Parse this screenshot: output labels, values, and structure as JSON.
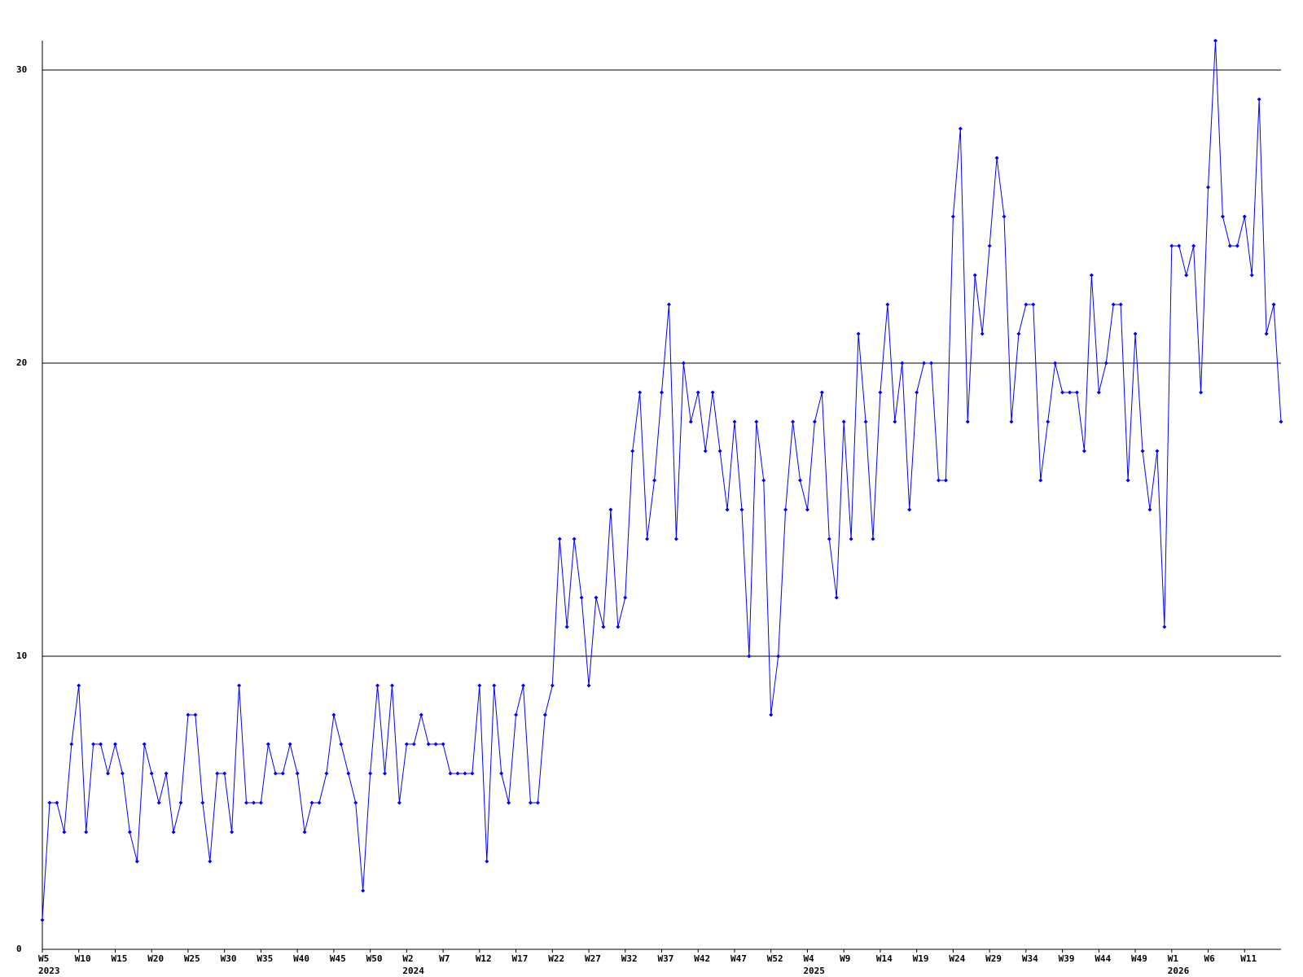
{
  "chart_data": {
    "type": "line",
    "categories": [
      "W5",
      null,
      null,
      null,
      null,
      "W10",
      null,
      null,
      null,
      null,
      "W15",
      null,
      null,
      null,
      null,
      "W20",
      null,
      null,
      null,
      null,
      "W25",
      null,
      null,
      null,
      null,
      "W30",
      null,
      null,
      null,
      null,
      "W35",
      null,
      null,
      null,
      null,
      "W40",
      null,
      null,
      null,
      null,
      "W45",
      null,
      null,
      null,
      null,
      "W50",
      null,
      null,
      null,
      null,
      "W2",
      null,
      null,
      null,
      null,
      "W7",
      null,
      null,
      null,
      null,
      "W12",
      null,
      null,
      null,
      null,
      "W17",
      null,
      null,
      null,
      null,
      "W22",
      null,
      null,
      null,
      null,
      "W27",
      null,
      null,
      null,
      null,
      "W32",
      null,
      null,
      null,
      null,
      "W37",
      null,
      null,
      null,
      null,
      "W42",
      null,
      null,
      null,
      null,
      "W47",
      null,
      null,
      null,
      null,
      "W52",
      null,
      null,
      null,
      null,
      "W4",
      null,
      null,
      null,
      null,
      "W9",
      null,
      null,
      null,
      null,
      "W14",
      null,
      null,
      null,
      null,
      "W19",
      null,
      null,
      null,
      null,
      "W24",
      null,
      null,
      null,
      null,
      "W29",
      null,
      null,
      null,
      null,
      "W34",
      null,
      null,
      null,
      null,
      "W39",
      null,
      null,
      null,
      null,
      "W44",
      null,
      null,
      null,
      null,
      "W49",
      null,
      null,
      null,
      null,
      "W1",
      null,
      null,
      null,
      null,
      "W6",
      null,
      null,
      null,
      null,
      "W11",
      null,
      null,
      null,
      null,
      null
    ],
    "year_labels": [
      {
        "category_index": 0,
        "label": "2023"
      },
      {
        "category_index": 50,
        "label": "2024"
      },
      {
        "category_index": 105,
        "label": "2025"
      },
      {
        "category_index": 155,
        "label": "2026"
      }
    ],
    "series": [
      {
        "name": "weekly",
        "color": "#0000ff",
        "values": [
          1,
          5,
          5,
          4,
          7,
          9,
          4,
          7,
          7,
          6,
          7,
          6,
          4,
          3,
          7,
          6,
          5,
          6,
          4,
          5,
          8,
          8,
          5,
          3,
          6,
          6,
          4,
          9,
          5,
          5,
          5,
          7,
          6,
          6,
          7,
          6,
          4,
          5,
          5,
          6,
          8,
          7,
          6,
          5,
          2,
          6,
          9,
          6,
          9,
          5,
          7,
          7,
          8,
          7,
          7,
          7,
          6,
          6,
          6,
          6,
          9,
          3,
          9,
          6,
          5,
          8,
          9,
          5,
          5,
          8,
          9,
          14,
          11,
          14,
          12,
          9,
          12,
          11,
          15,
          11,
          12,
          17,
          19,
          14,
          16,
          19,
          22,
          14,
          20,
          18,
          19,
          17,
          19,
          17,
          15,
          18,
          15,
          10,
          18,
          16,
          8,
          10,
          15,
          18,
          16,
          15,
          18,
          19,
          14,
          12,
          18,
          14,
          21,
          18,
          14,
          19,
          22,
          18,
          20,
          15,
          19,
          20,
          20,
          16,
          16,
          25,
          28,
          18,
          23,
          21,
          24,
          27,
          25,
          18,
          21,
          22,
          22,
          16,
          18,
          20,
          19,
          19,
          19,
          17,
          23,
          19,
          20,
          22,
          22,
          16,
          21,
          17,
          15,
          17,
          11,
          24,
          24,
          23,
          24,
          19,
          26,
          31,
          25,
          24,
          24,
          25,
          23,
          29,
          21,
          22,
          18
        ]
      }
    ],
    "ylim": [
      0,
      31
    ],
    "yticks": [
      0,
      10,
      20,
      30
    ],
    "grid": true
  }
}
